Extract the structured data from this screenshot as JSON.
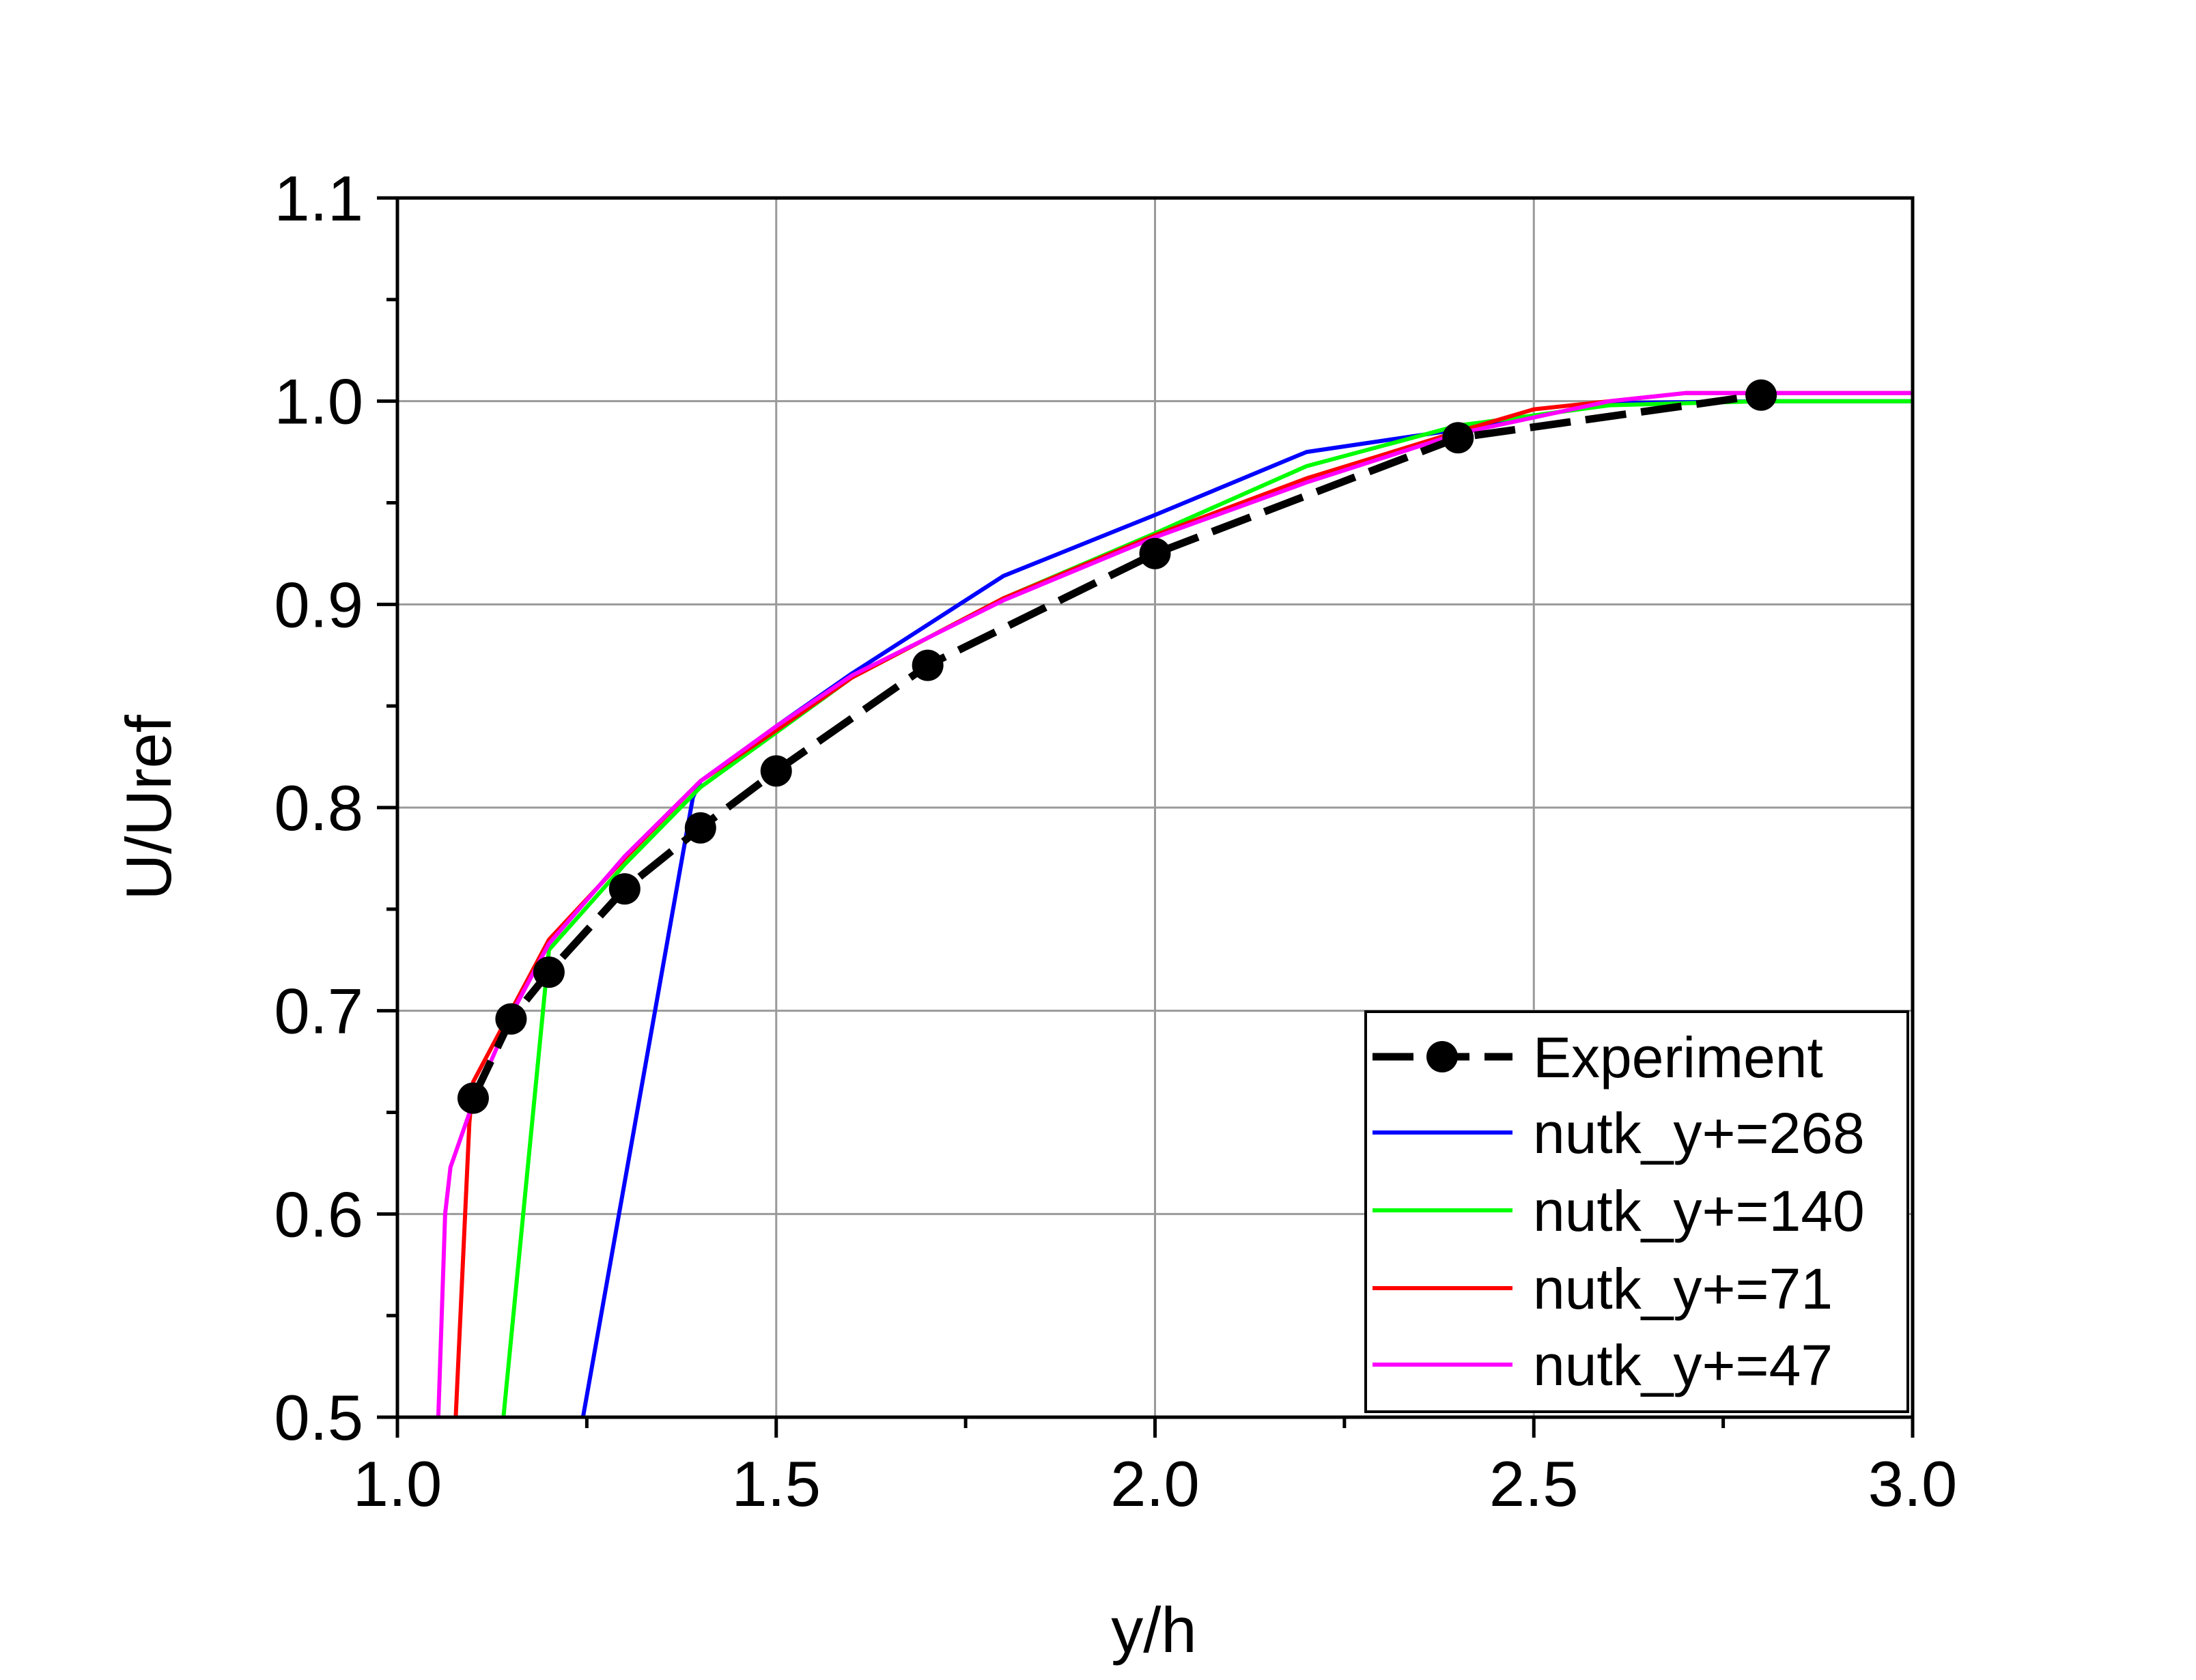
{
  "chart_data": {
    "type": "line",
    "title": "",
    "xlabel": "y/h",
    "ylabel": "U/Uref",
    "xlim": [
      1.0,
      3.0
    ],
    "ylim": [
      0.5,
      1.1
    ],
    "xticks": [
      "1.0",
      "1.5",
      "2.0",
      "2.5",
      "3.0"
    ],
    "yticks": [
      "0.5",
      "0.6",
      "0.7",
      "0.8",
      "0.9",
      "1.0",
      "1.1"
    ],
    "grid": true,
    "legend_position": "bottom-right",
    "series": [
      {
        "name": "Experiment",
        "color": "#000000",
        "marker": "circle",
        "x": [
          1.1,
          1.15,
          1.2,
          1.3,
          1.4,
          1.5,
          1.7,
          2.0,
          2.4,
          2.8
        ],
        "y": [
          0.657,
          0.696,
          0.719,
          0.76,
          0.79,
          0.818,
          0.87,
          0.925,
          0.982,
          1.003
        ]
      },
      {
        "name": "nutk_y+=268",
        "color": "#0000ff",
        "x": [
          1.245,
          1.39,
          1.4,
          1.5,
          1.6,
          1.7,
          1.8,
          2.0,
          2.2,
          2.4,
          2.6,
          2.8,
          3.0
        ],
        "y": [
          0.5,
          0.805,
          0.813,
          0.84,
          0.866,
          0.89,
          0.914,
          0.944,
          0.975,
          0.986,
          0.999,
          1.0,
          1.0
        ]
      },
      {
        "name": "nutk_y+=140",
        "color": "#00ff00",
        "x": [
          1.14,
          1.2,
          1.3,
          1.4,
          1.5,
          1.6,
          1.8,
          2.0,
          2.2,
          2.4,
          2.6,
          2.8,
          3.0
        ],
        "y": [
          0.5,
          0.73,
          0.772,
          0.81,
          0.837,
          0.864,
          0.903,
          0.935,
          0.968,
          0.988,
          0.998,
          1.0,
          1.0
        ]
      },
      {
        "name": "nutk_y+=71",
        "color": "#ff0000",
        "x": [
          1.077,
          1.095,
          1.1,
          1.15,
          1.2,
          1.3,
          1.4,
          1.5,
          1.6,
          1.8,
          2.0,
          2.2,
          2.4,
          2.5,
          2.7,
          3.0
        ],
        "y": [
          0.5,
          0.645,
          0.665,
          0.7,
          0.735,
          0.775,
          0.813,
          0.838,
          0.864,
          0.903,
          0.934,
          0.962,
          0.985,
          0.996,
          1.004,
          1.004
        ]
      },
      {
        "name": "nutk_y+=47",
        "color": "#ff00ff",
        "x": [
          1.054,
          1.063,
          1.07,
          1.1,
          1.15,
          1.2,
          1.3,
          1.4,
          1.5,
          1.6,
          1.8,
          2.0,
          2.2,
          2.4,
          2.6,
          2.7,
          3.0
        ],
        "y": [
          0.5,
          0.6,
          0.623,
          0.655,
          0.698,
          0.733,
          0.776,
          0.813,
          0.84,
          0.865,
          0.902,
          0.933,
          0.96,
          0.984,
          1.0,
          1.004,
          1.004
        ]
      }
    ]
  }
}
